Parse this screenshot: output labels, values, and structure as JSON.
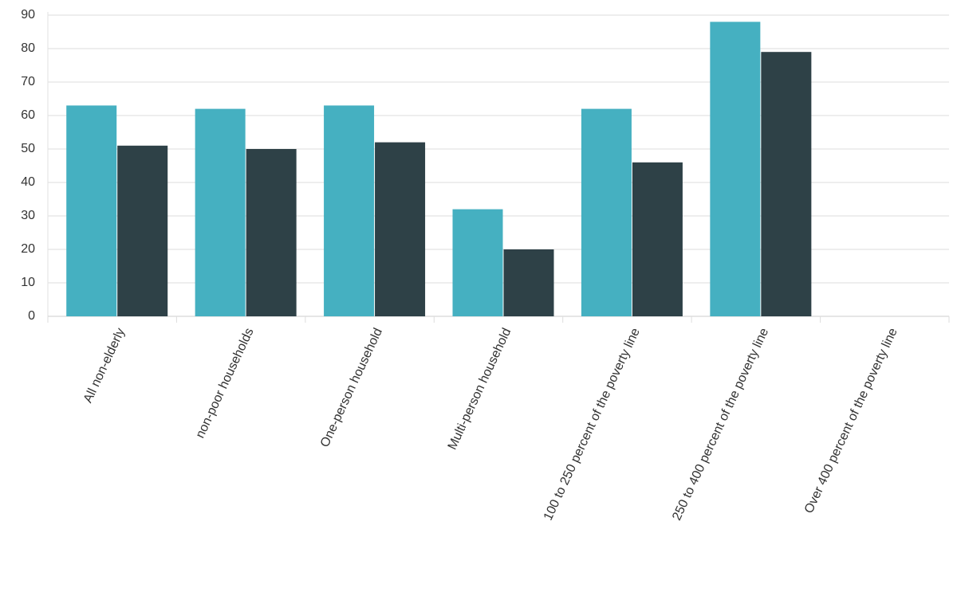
{
  "chart_data": {
    "type": "bar",
    "categories": [
      "All non-elderly",
      "non-poor households",
      "One-person household",
      "Multi-person household",
      "100 to 250 percent of the poverty line",
      "250 to 400 percent of the poverty line",
      "Over 400 percent of the poverty line"
    ],
    "series": [
      {
        "color": "#45b0c1",
        "values": [
          63,
          62,
          63,
          32,
          62,
          88,
          null
        ]
      },
      {
        "color": "#2e4147",
        "values": [
          51,
          50,
          52,
          20,
          46,
          79,
          null
        ]
      }
    ],
    "ylim": [
      0,
      90
    ],
    "yticks": [
      0,
      10,
      20,
      30,
      40,
      50,
      60,
      70,
      80,
      90
    ],
    "grid": true
  }
}
